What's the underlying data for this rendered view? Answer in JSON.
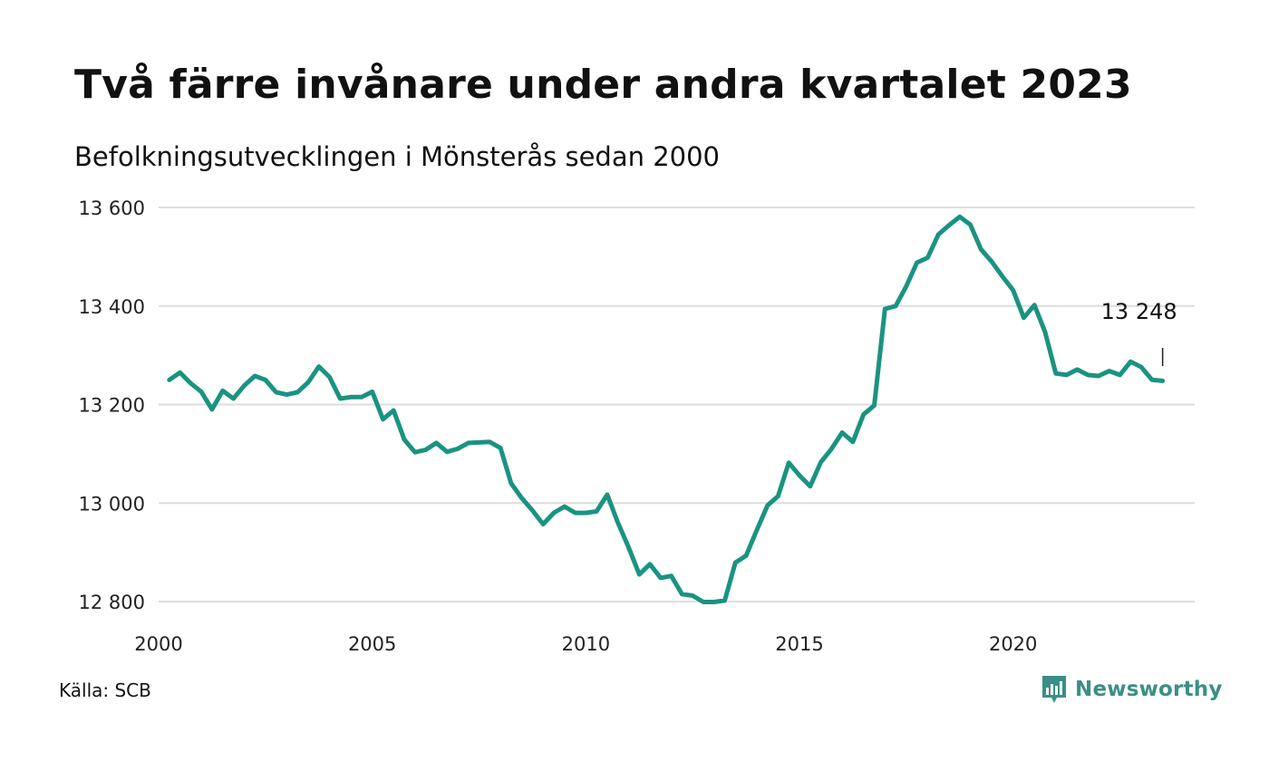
{
  "title": "Två färre invånare under andra kvartalet 2023",
  "subtitle": "Befolkningsutvecklingen i Mönsterås sedan 2000",
  "source": "Källa: SCB",
  "brand": "Newsworthy",
  "colors": {
    "line": "#1a9382",
    "grid": "#dddddd",
    "brand": "#3a8f86"
  },
  "chart_data": {
    "type": "line",
    "x_ticks": [
      "2000",
      "2005",
      "2010",
      "2015",
      "2020"
    ],
    "y_ticks": [
      "12 800",
      "13 000",
      "13 200",
      "13 400",
      "13 600"
    ],
    "ylim": [
      12800,
      13600
    ],
    "xlim": [
      2000,
      2024.25
    ],
    "grid": true,
    "last_value_label": "13 248",
    "series": [
      {
        "x_start": 2000.25,
        "x_step": 0.25,
        "values": [
          13250,
          13265,
          13243,
          13226,
          13190,
          13228,
          13212,
          13238,
          13258,
          13250,
          13225,
          13220,
          13225,
          13245,
          13277,
          13256,
          13212,
          13215,
          13215,
          13226,
          13170,
          13188,
          13129,
          13103,
          13108,
          13122,
          13104,
          13110,
          13122,
          13123,
          13124,
          13112,
          13040,
          13010,
          12985,
          12957,
          12980,
          12993,
          12980,
          12980,
          12983,
          13017,
          12960,
          12910,
          12855,
          12876,
          12848,
          12852,
          12815,
          12812,
          12799,
          12799,
          12802,
          12879,
          12893,
          12945,
          12995,
          13014,
          13082,
          13056,
          13034,
          13083,
          13110,
          13143,
          13124,
          13180,
          13198,
          13394,
          13400,
          13440,
          13488,
          13498,
          13545,
          13564,
          13581,
          13565,
          13515,
          13490,
          13460,
          13432,
          13376,
          13402,
          13347,
          13263,
          13260,
          13271,
          13260,
          13258,
          13268,
          13260,
          13287,
          13276,
          13250,
          13248
        ]
      }
    ]
  }
}
